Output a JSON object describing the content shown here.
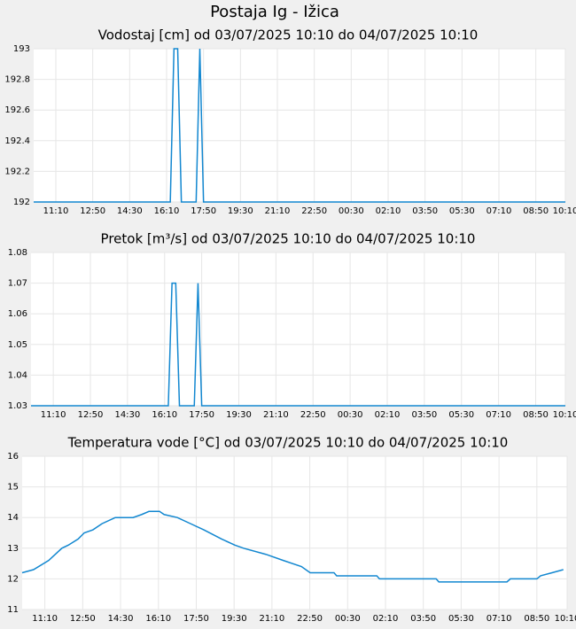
{
  "title": "Postaja Ig - Ižica",
  "chart_data": [
    {
      "type": "line",
      "title": "Vodostaj [cm] od 03/07/2025 10:10 do 04/07/2025 10:10",
      "color": "#1287d0",
      "grid": true,
      "x": [
        0,
        370,
        380,
        390,
        400,
        440,
        450,
        460,
        1440
      ],
      "values": [
        192,
        192,
        193,
        193,
        192,
        192,
        193,
        192,
        192
      ],
      "xlim": [
        0,
        1440
      ],
      "ylim": [
        192,
        193
      ],
      "yticks": [
        192,
        192.2,
        192.4,
        192.6,
        192.8,
        193
      ],
      "xticks": [
        {
          "value": 60,
          "label": "11:10"
        },
        {
          "value": 160,
          "label": "12:50"
        },
        {
          "value": 260,
          "label": "14:30"
        },
        {
          "value": 360,
          "label": "16:10"
        },
        {
          "value": 460,
          "label": "17:50"
        },
        {
          "value": 560,
          "label": "19:30"
        },
        {
          "value": 660,
          "label": "21:10"
        },
        {
          "value": 760,
          "label": "22:50"
        },
        {
          "value": 860,
          "label": "00:30"
        },
        {
          "value": 960,
          "label": "02:10"
        },
        {
          "value": 1060,
          "label": "03:50"
        },
        {
          "value": 1160,
          "label": "05:30"
        },
        {
          "value": 1260,
          "label": "07:10"
        },
        {
          "value": 1360,
          "label": "08:50"
        },
        {
          "value": 1440,
          "label": "10:10"
        }
      ]
    },
    {
      "type": "line",
      "title": "Pretok [m³/s] od 03/07/2025 10:10 do 04/07/2025 10:10",
      "color": "#1287d0",
      "grid": true,
      "x": [
        0,
        370,
        380,
        390,
        400,
        440,
        450,
        460,
        1440
      ],
      "values": [
        1.03,
        1.03,
        1.07,
        1.07,
        1.03,
        1.03,
        1.07,
        1.03,
        1.03
      ],
      "xlim": [
        0,
        1440
      ],
      "ylim": [
        1.03,
        1.08
      ],
      "yticks": [
        1.03,
        1.04,
        1.05,
        1.06,
        1.07,
        1.08
      ],
      "xticks": [
        {
          "value": 60,
          "label": "11:10"
        },
        {
          "value": 160,
          "label": "12:50"
        },
        {
          "value": 260,
          "label": "14:30"
        },
        {
          "value": 360,
          "label": "16:10"
        },
        {
          "value": 460,
          "label": "17:50"
        },
        {
          "value": 560,
          "label": "19:30"
        },
        {
          "value": 660,
          "label": "21:10"
        },
        {
          "value": 760,
          "label": "22:50"
        },
        {
          "value": 860,
          "label": "00:30"
        },
        {
          "value": 960,
          "label": "02:10"
        },
        {
          "value": 1060,
          "label": "03:50"
        },
        {
          "value": 1160,
          "label": "05:30"
        },
        {
          "value": 1260,
          "label": "07:10"
        },
        {
          "value": 1360,
          "label": "08:50"
        },
        {
          "value": 1440,
          "label": "10:10"
        }
      ]
    },
    {
      "type": "line",
      "title": "Temperatura vode [°C] od 03/07/2025 10:10 do 04/07/2025 10:10",
      "color": "#1287d0",
      "grid": true,
      "x": [
        0,
        30,
        70,
        105,
        122,
        148,
        164,
        187,
        211,
        246,
        293,
        316,
        335,
        363,
        375,
        410,
        445,
        480,
        527,
        562,
        585,
        644,
        690,
        738,
        761,
        824,
        831,
        937,
        944,
        1094,
        1101,
        1281,
        1290,
        1360,
        1370,
        1400,
        1430
      ],
      "values": [
        12.2,
        12.3,
        12.6,
        13.0,
        13.1,
        13.3,
        13.5,
        13.6,
        13.8,
        14.0,
        14.0,
        14.1,
        14.2,
        14.2,
        14.1,
        14.0,
        13.8,
        13.6,
        13.3,
        13.1,
        13.0,
        12.8,
        12.6,
        12.4,
        12.2,
        12.2,
        12.1,
        12.1,
        12.0,
        12.0,
        11.9,
        11.9,
        12.0,
        12.0,
        12.1,
        12.2,
        12.3
      ],
      "xlim": [
        0,
        1440
      ],
      "ylim": [
        11,
        16
      ],
      "yticks": [
        11,
        12,
        13,
        14,
        15,
        16
      ],
      "xticks": [
        {
          "value": 60,
          "label": "11:10"
        },
        {
          "value": 160,
          "label": "12:50"
        },
        {
          "value": 260,
          "label": "14:30"
        },
        {
          "value": 360,
          "label": "16:10"
        },
        {
          "value": 460,
          "label": "17:50"
        },
        {
          "value": 560,
          "label": "19:30"
        },
        {
          "value": 660,
          "label": "21:10"
        },
        {
          "value": 760,
          "label": "22:50"
        },
        {
          "value": 860,
          "label": "00:30"
        },
        {
          "value": 960,
          "label": "02:10"
        },
        {
          "value": 1060,
          "label": "03:50"
        },
        {
          "value": 1160,
          "label": "05:30"
        },
        {
          "value": 1260,
          "label": "07:10"
        },
        {
          "value": 1360,
          "label": "08:50"
        },
        {
          "value": 1440,
          "label": "10:10"
        }
      ]
    }
  ]
}
